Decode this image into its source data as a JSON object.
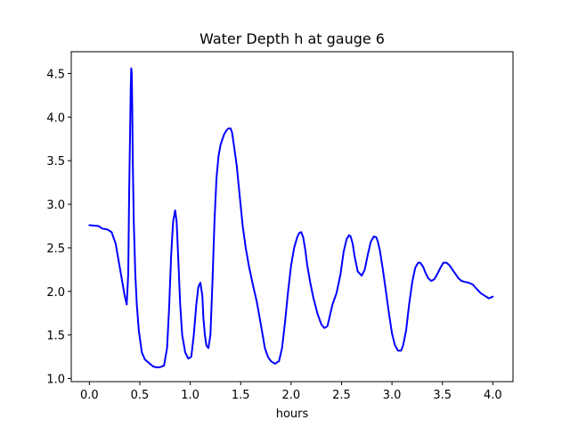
{
  "chart_data": {
    "type": "line",
    "title": "Water Depth h at gauge 6",
    "xlabel": "hours",
    "ylabel": "",
    "xlim": [
      -0.18,
      4.2
    ],
    "ylim": [
      0.965,
      4.75
    ],
    "xticks": [
      0.0,
      0.5,
      1.0,
      1.5,
      2.0,
      2.5,
      3.0,
      3.5,
      4.0
    ],
    "xtick_labels": [
      "0.0",
      "0.5",
      "1.0",
      "1.5",
      "2.0",
      "2.5",
      "3.0",
      "3.5",
      "4.0"
    ],
    "yticks": [
      1.0,
      1.5,
      2.0,
      2.5,
      3.0,
      3.5,
      4.0,
      4.5
    ],
    "ytick_labels": [
      "1.0",
      "1.5",
      "2.0",
      "2.5",
      "3.0",
      "3.5",
      "4.0",
      "4.5"
    ],
    "grid": false,
    "series": [
      {
        "color": "#0000ff",
        "x": [
          0.0,
          0.04,
          0.09,
          0.13,
          0.18,
          0.22,
          0.26,
          0.29,
          0.32,
          0.35,
          0.37,
          0.385,
          0.395,
          0.405,
          0.41,
          0.415,
          0.42,
          0.425,
          0.43,
          0.44,
          0.455,
          0.47,
          0.49,
          0.52,
          0.55,
          0.59,
          0.63,
          0.66,
          0.7,
          0.74,
          0.77,
          0.79,
          0.81,
          0.83,
          0.85,
          0.865,
          0.88,
          0.9,
          0.92,
          0.95,
          0.98,
          1.01,
          1.035,
          1.06,
          1.08,
          1.1,
          1.12,
          1.13,
          1.145,
          1.16,
          1.18,
          1.2,
          1.22,
          1.24,
          1.26,
          1.28,
          1.3,
          1.32,
          1.335,
          1.36,
          1.38,
          1.4,
          1.415,
          1.43,
          1.46,
          1.49,
          1.52,
          1.55,
          1.58,
          1.62,
          1.66,
          1.7,
          1.74,
          1.77,
          1.8,
          1.84,
          1.88,
          1.91,
          1.94,
          1.97,
          2.0,
          2.03,
          2.06,
          2.08,
          2.1,
          2.12,
          2.14,
          2.16,
          2.19,
          2.22,
          2.26,
          2.3,
          2.33,
          2.36,
          2.38,
          2.41,
          2.45,
          2.49,
          2.52,
          2.55,
          2.575,
          2.59,
          2.61,
          2.63,
          2.66,
          2.7,
          2.73,
          2.76,
          2.79,
          2.82,
          2.845,
          2.86,
          2.88,
          2.91,
          2.94,
          2.97,
          3.0,
          3.03,
          3.06,
          3.09,
          3.11,
          3.14,
          3.17,
          3.2,
          3.23,
          3.26,
          3.28,
          3.31,
          3.33,
          3.36,
          3.39,
          3.42,
          3.45,
          3.48,
          3.51,
          3.54,
          3.57,
          3.6,
          3.63,
          3.66,
          3.69,
          3.72,
          3.76,
          3.8,
          3.84,
          3.88,
          3.92,
          3.96,
          4.0
        ],
        "y": [
          2.76,
          2.755,
          2.75,
          2.72,
          2.71,
          2.68,
          2.55,
          2.35,
          2.15,
          1.95,
          1.85,
          2.2,
          3.2,
          3.95,
          4.35,
          4.56,
          4.5,
          4.1,
          3.5,
          2.8,
          2.2,
          1.85,
          1.55,
          1.3,
          1.22,
          1.18,
          1.14,
          1.13,
          1.13,
          1.15,
          1.35,
          1.8,
          2.4,
          2.8,
          2.93,
          2.8,
          2.4,
          1.85,
          1.5,
          1.3,
          1.23,
          1.25,
          1.5,
          1.85,
          2.05,
          2.1,
          1.95,
          1.7,
          1.5,
          1.38,
          1.35,
          1.5,
          2.1,
          2.8,
          3.3,
          3.55,
          3.68,
          3.75,
          3.8,
          3.85,
          3.87,
          3.87,
          3.82,
          3.7,
          3.45,
          3.1,
          2.75,
          2.5,
          2.3,
          2.08,
          1.88,
          1.62,
          1.35,
          1.25,
          1.2,
          1.17,
          1.2,
          1.35,
          1.65,
          2.0,
          2.3,
          2.5,
          2.62,
          2.67,
          2.68,
          2.62,
          2.48,
          2.3,
          2.1,
          1.93,
          1.75,
          1.62,
          1.58,
          1.6,
          1.7,
          1.85,
          1.98,
          2.2,
          2.45,
          2.6,
          2.645,
          2.63,
          2.55,
          2.4,
          2.23,
          2.18,
          2.25,
          2.42,
          2.57,
          2.63,
          2.62,
          2.57,
          2.47,
          2.25,
          2.0,
          1.75,
          1.52,
          1.38,
          1.32,
          1.32,
          1.38,
          1.55,
          1.85,
          2.1,
          2.27,
          2.33,
          2.33,
          2.28,
          2.22,
          2.15,
          2.12,
          2.14,
          2.2,
          2.27,
          2.33,
          2.33,
          2.3,
          2.25,
          2.2,
          2.15,
          2.12,
          2.11,
          2.1,
          2.08,
          2.03,
          1.98,
          1.95,
          1.92,
          1.94
        ]
      }
    ]
  }
}
